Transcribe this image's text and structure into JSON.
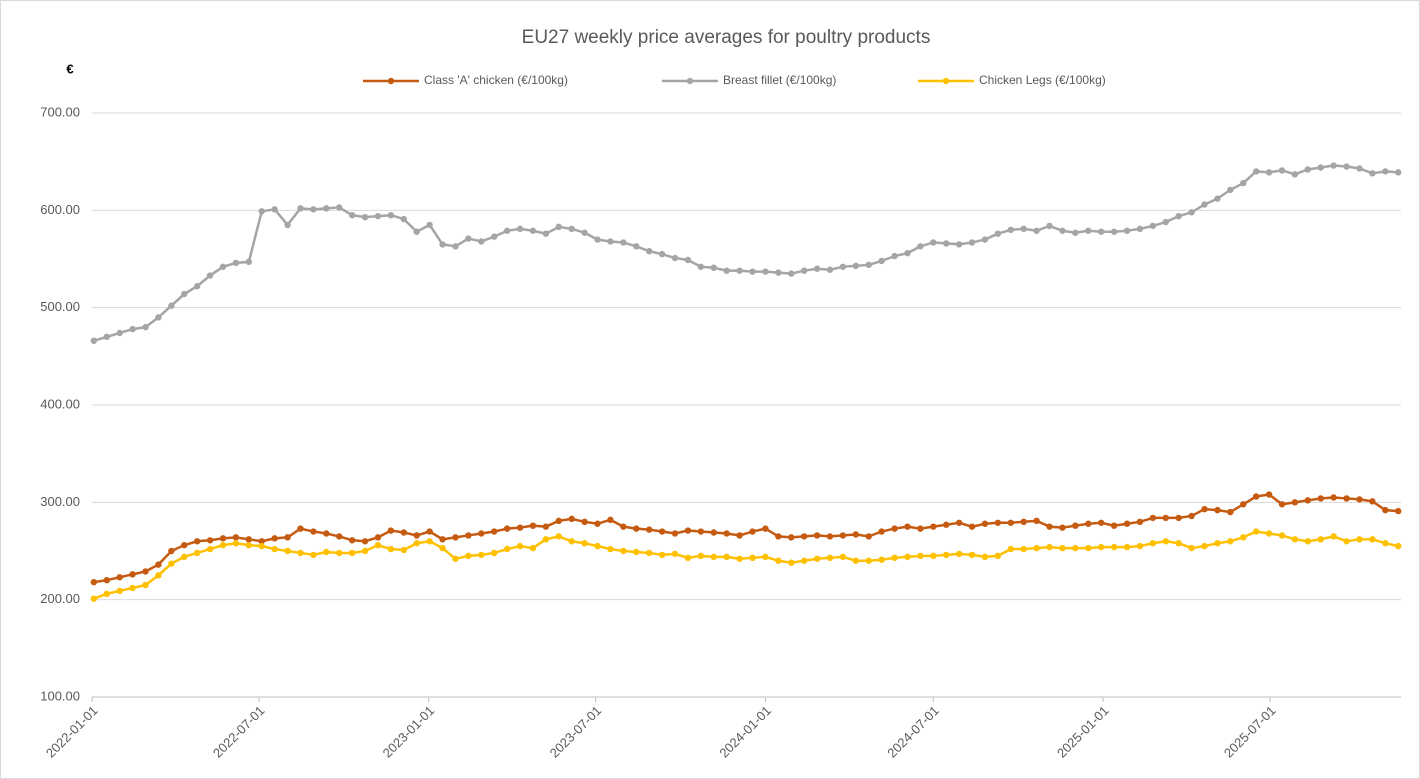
{
  "chart_data": {
    "type": "line",
    "title": "EU27 weekly price averages for poultry products",
    "y_label": "€",
    "x": [
      "2022-01-03",
      "2022-01-17",
      "2022-01-31",
      "2022-02-14",
      "2022-02-28",
      "2022-03-14",
      "2022-03-28",
      "2022-04-11",
      "2022-04-25",
      "2022-05-09",
      "2022-05-23",
      "2022-06-06",
      "2022-06-20",
      "2022-07-04",
      "2022-07-18",
      "2022-08-01",
      "2022-08-15",
      "2022-08-29",
      "2022-09-12",
      "2022-09-26",
      "2022-10-10",
      "2022-10-24",
      "2022-11-07",
      "2022-11-21",
      "2022-12-05",
      "2022-12-19",
      "2023-01-02",
      "2023-01-16",
      "2023-01-30",
      "2023-02-13",
      "2023-02-27",
      "2023-03-13",
      "2023-03-27",
      "2023-04-10",
      "2023-04-24",
      "2023-05-08",
      "2023-05-22",
      "2023-06-05",
      "2023-06-19",
      "2023-07-03",
      "2023-07-17",
      "2023-07-31",
      "2023-08-14",
      "2023-08-28",
      "2023-09-11",
      "2023-09-25",
      "2023-10-09",
      "2023-10-23",
      "2023-11-06",
      "2023-11-20",
      "2023-12-04",
      "2023-12-18",
      "2024-01-01",
      "2024-01-15",
      "2024-01-29",
      "2024-02-12",
      "2024-02-26",
      "2024-03-11",
      "2024-03-25",
      "2024-04-08",
      "2024-04-22",
      "2024-05-06",
      "2024-05-20",
      "2024-06-03",
      "2024-06-17",
      "2024-07-01",
      "2024-07-15",
      "2024-07-29",
      "2024-08-12",
      "2024-08-26",
      "2024-09-09",
      "2024-09-23",
      "2024-10-07",
      "2024-10-21",
      "2024-11-04",
      "2024-11-18",
      "2024-12-02",
      "2024-12-16",
      "2024-12-30",
      "2025-01-13",
      "2025-01-27",
      "2025-02-10",
      "2025-02-24",
      "2025-03-10",
      "2025-03-24",
      "2025-04-07",
      "2025-04-21",
      "2025-05-05",
      "2025-05-19",
      "2025-06-02",
      "2025-06-16",
      "2025-06-30",
      "2025-07-14",
      "2025-07-28",
      "2025-08-11",
      "2025-08-25",
      "2025-09-08",
      "2025-09-22",
      "2025-10-06",
      "2025-10-20",
      "2025-11-03",
      "2025-11-17"
    ],
    "series": [
      {
        "name": "Class 'A' chicken  (€/100kg)",
        "color": "#c55a11",
        "values": [
          218,
          220,
          223,
          226,
          229,
          236,
          250,
          256,
          260,
          261,
          263,
          264,
          262,
          260,
          263,
          264,
          273,
          270,
          268,
          265,
          261,
          260,
          264,
          271,
          269,
          266,
          270,
          262,
          264,
          266,
          268,
          270,
          273,
          274,
          276,
          275,
          281,
          283,
          280,
          278,
          282,
          275,
          273,
          272,
          270,
          268,
          271,
          270,
          269,
          268,
          266,
          270,
          273,
          265,
          264,
          265,
          266,
          265,
          266,
          267,
          265,
          270,
          273,
          275,
          273,
          275,
          277,
          279,
          275,
          278,
          279,
          279,
          280,
          281,
          275,
          274,
          276,
          278,
          279,
          276,
          278,
          280,
          284,
          284,
          284,
          286,
          293,
          292,
          290,
          298,
          306,
          308,
          298,
          300,
          302,
          304,
          305,
          304,
          303,
          301,
          292,
          291
        ]
      },
      {
        "name": "Breast fillet  (€/100kg)",
        "color": "#a5a5a5",
        "values": [
          466,
          470,
          474,
          478,
          480,
          490,
          502,
          514,
          522,
          533,
          542,
          546,
          547,
          599,
          601,
          585,
          602,
          601,
          602,
          603,
          595,
          593,
          594,
          595,
          591,
          578,
          585,
          565,
          563,
          571,
          568,
          573,
          579,
          581,
          579,
          576,
          583,
          581,
          577,
          570,
          568,
          567,
          563,
          558,
          555,
          551,
          549,
          542,
          541,
          538,
          538,
          537,
          537,
          536,
          535,
          538,
          540,
          539,
          542,
          543,
          544,
          548,
          553,
          556,
          563,
          567,
          566,
          565,
          567,
          570,
          576,
          580,
          581,
          579,
          584,
          579,
          577,
          579,
          578,
          578,
          579,
          581,
          584,
          588,
          594,
          598,
          606,
          612,
          621,
          628,
          640,
          639,
          641,
          637,
          642,
          644,
          646,
          645,
          643,
          638,
          640,
          639
        ]
      },
      {
        "name": "Chicken Legs  (€/100kg)",
        "color": "#ffc000",
        "values": [
          201,
          206,
          209,
          212,
          215,
          225,
          237,
          244,
          248,
          252,
          256,
          258,
          256,
          255,
          252,
          250,
          248,
          246,
          249,
          248,
          248,
          250,
          256,
          252,
          251,
          258,
          260,
          253,
          242,
          245,
          246,
          248,
          252,
          255,
          253,
          262,
          265,
          260,
          258,
          255,
          252,
          250,
          249,
          248,
          246,
          247,
          243,
          245,
          244,
          244,
          242,
          243,
          244,
          240,
          238,
          240,
          242,
          243,
          244,
          240,
          240,
          241,
          243,
          244,
          245,
          245,
          246,
          247,
          246,
          244,
          245,
          252,
          252,
          253,
          254,
          253,
          253,
          253,
          254,
          254,
          254,
          255,
          258,
          260,
          258,
          253,
          255,
          258,
          260,
          264,
          270,
          268,
          266,
          262,
          260,
          262,
          265,
          260,
          262,
          262,
          258,
          255
        ]
      }
    ],
    "xlim": [
      "2022-01-01",
      "2025-11-20"
    ],
    "xticks": [
      "2022-01-01",
      "2022-07-01",
      "2023-01-01",
      "2023-07-01",
      "2024-01-01",
      "2024-07-01",
      "2025-01-01",
      "2025-07-01"
    ],
    "ylim": [
      100,
      700
    ],
    "yticks": [
      {
        "value": 100,
        "label": "100.00"
      },
      {
        "value": 200,
        "label": "200.00"
      },
      {
        "value": 300,
        "label": "300.00"
      },
      {
        "value": 400,
        "label": "400.00"
      },
      {
        "value": 500,
        "label": "500.00"
      },
      {
        "value": 600,
        "label": "600.00"
      },
      {
        "value": 700,
        "label": "700.00"
      }
    ],
    "grid": true,
    "legend": "top"
  }
}
